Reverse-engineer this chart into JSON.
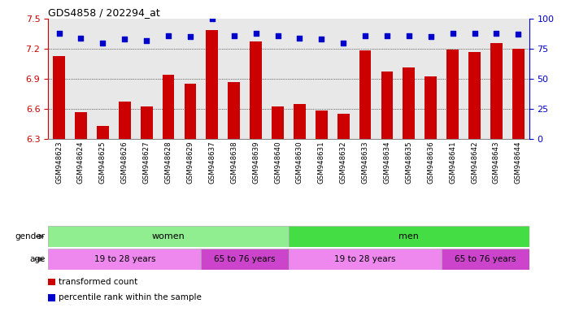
{
  "title": "GDS4858 / 202294_at",
  "samples": [
    "GSM948623",
    "GSM948624",
    "GSM948625",
    "GSM948626",
    "GSM948627",
    "GSM948628",
    "GSM948629",
    "GSM948637",
    "GSM948638",
    "GSM948639",
    "GSM948640",
    "GSM948630",
    "GSM948631",
    "GSM948632",
    "GSM948633",
    "GSM948634",
    "GSM948635",
    "GSM948636",
    "GSM948641",
    "GSM948642",
    "GSM948643",
    "GSM948644"
  ],
  "bar_values": [
    7.13,
    6.57,
    6.43,
    6.67,
    6.62,
    6.94,
    6.85,
    7.39,
    6.87,
    7.27,
    6.62,
    6.65,
    6.58,
    6.55,
    7.18,
    6.97,
    7.01,
    6.92,
    7.19,
    7.17,
    7.26,
    7.2
  ],
  "percentile_values": [
    88,
    84,
    80,
    83,
    82,
    86,
    85,
    100,
    86,
    88,
    86,
    84,
    83,
    80,
    86,
    86,
    86,
    85,
    88,
    88,
    88,
    87
  ],
  "ylim_left": [
    6.3,
    7.5
  ],
  "ylim_right": [
    0,
    100
  ],
  "yticks_left": [
    6.3,
    6.6,
    6.9,
    7.2,
    7.5
  ],
  "yticks_right": [
    0,
    25,
    50,
    75,
    100
  ],
  "bar_color": "#CC0000",
  "dot_color": "#0000CC",
  "background_color": "#e8e8e8",
  "gender_women_color": "#90EE90",
  "gender_men_color": "#44DD44",
  "age_young_color": "#EE88EE",
  "age_old_color": "#CC44CC",
  "gender_row": [
    {
      "label": "women",
      "start": 0,
      "end": 11
    },
    {
      "label": "men",
      "start": 11,
      "end": 22
    }
  ],
  "age_row": [
    {
      "label": "19 to 28 years",
      "start": 0,
      "end": 7
    },
    {
      "label": "65 to 76 years",
      "start": 7,
      "end": 11
    },
    {
      "label": "19 to 28 years",
      "start": 11,
      "end": 18
    },
    {
      "label": "65 to 76 years",
      "start": 18,
      "end": 22
    }
  ],
  "legend_items": [
    {
      "color": "#CC0000",
      "label": "transformed count"
    },
    {
      "color": "#0000CC",
      "label": "percentile rank within the sample"
    }
  ]
}
